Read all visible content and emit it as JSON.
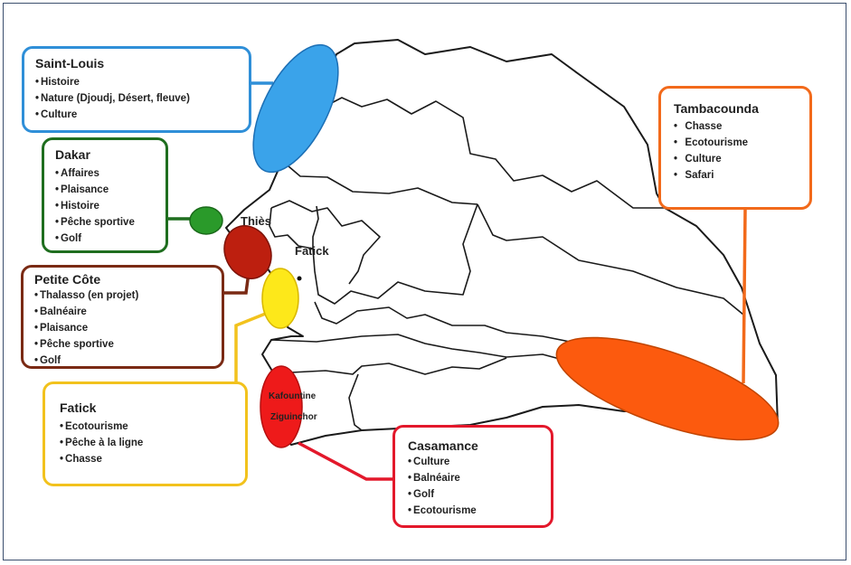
{
  "colors": {
    "saint_louis": "#2f8fd8",
    "dakar": "#1f6e1f",
    "thies": "#b81b0d",
    "petite_cote": "#7a2a14",
    "fatick": "#f2c21d",
    "casamance": "#e3182b",
    "tambacounda": "#f26a1b"
  },
  "map_labels": {
    "thies": "Thiès",
    "fatick": "Fatick",
    "kafountine": "Kafountine",
    "ziguinchor": "Ziguinchor"
  },
  "boxes": {
    "saint_louis": {
      "title": "Saint-Louis",
      "items": [
        "Histoire",
        "Nature (Djoudj, Désert, fleuve)",
        "Culture"
      ]
    },
    "dakar": {
      "title": "Dakar",
      "items": [
        "Affaires",
        "Plaisance",
        "Histoire",
        "Pêche sportive",
        "Golf"
      ]
    },
    "petite_cote": {
      "title": "Petite Côte",
      "items": [
        "Thalasso (en projet)",
        "Balnéaire",
        "Plaisance",
        "Pêche sportive",
        "Golf"
      ]
    },
    "fatick": {
      "title": "Fatick",
      "items": [
        "Ecotourisme",
        "Pêche à la ligne",
        "Chasse"
      ]
    },
    "casamance": {
      "title": "Casamance",
      "items": [
        "Culture",
        "Balnéaire",
        "Golf",
        "Ecotourisme"
      ]
    },
    "tambacounda": {
      "title": "Tambacounda",
      "items": [
        "Chasse",
        "Ecotourisme",
        "Culture",
        "Safari"
      ]
    }
  }
}
